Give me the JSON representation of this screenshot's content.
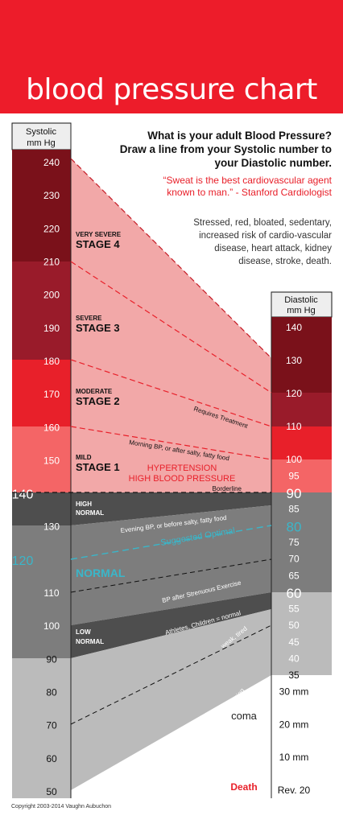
{
  "title": "blood pressure chart",
  "intro": {
    "question_line1": "What is your adult Blood Pressure?",
    "question_line2": "Draw a line from your Systolic number to",
    "question_line3": "your Diastolic number.",
    "quote_line1": "“Sweat is the best cardiovascular agent",
    "quote_line2": "known to man.” - Stanford Cardiologist",
    "risk_line1": "Stressed, red, bloated, sedentary,",
    "risk_line2": "increased risk of cardio-vascular",
    "risk_line3": "disease, heart attack, kidney",
    "risk_line4": "disease, stroke, death."
  },
  "systolic": {
    "header_line1": "Systolic",
    "header_line2": "mm Hg",
    "ticks": [
      {
        "label": "240",
        "value": 240
      },
      {
        "label": "230",
        "value": 230
      },
      {
        "label": "220",
        "value": 220
      },
      {
        "label": "210",
        "value": 210
      },
      {
        "label": "200",
        "value": 200
      },
      {
        "label": "190",
        "value": 190
      },
      {
        "label": "180",
        "value": 180
      },
      {
        "label": "170",
        "value": 170
      },
      {
        "label": "160",
        "value": 160
      },
      {
        "label": "150",
        "value": 150
      },
      {
        "label": "140",
        "value": 140,
        "big": true
      },
      {
        "label": "130",
        "value": 130
      },
      {
        "label": "120",
        "value": 120,
        "big": true,
        "color": "#3ab6c9"
      },
      {
        "label": "110",
        "value": 110
      },
      {
        "label": "100",
        "value": 100
      },
      {
        "label": "90",
        "value": 90
      },
      {
        "label": "80",
        "value": 80
      },
      {
        "label": "70",
        "value": 70
      },
      {
        "label": "60",
        "value": 60
      },
      {
        "label": "50",
        "value": 50
      }
    ]
  },
  "diastolic": {
    "header_line1": "Diastolic",
    "header_line2": "mm Hg",
    "ticks": [
      {
        "label": "140",
        "value": 140
      },
      {
        "label": "130",
        "value": 130
      },
      {
        "label": "120",
        "value": 120
      },
      {
        "label": "110",
        "value": 110
      },
      {
        "label": "100",
        "value": 100
      },
      {
        "label": "95",
        "value": 95
      },
      {
        "label": "90",
        "value": 90,
        "big": true
      },
      {
        "label": "85",
        "value": 85
      },
      {
        "label": "80",
        "value": 80,
        "big": true,
        "color": "#3ab6c9"
      },
      {
        "label": "75",
        "value": 75
      },
      {
        "label": "70",
        "value": 70
      },
      {
        "label": "65",
        "value": 65
      },
      {
        "label": "60",
        "value": 60,
        "big": true
      },
      {
        "label": "55",
        "value": 55
      },
      {
        "label": "50",
        "value": 50
      },
      {
        "label": "45",
        "value": 45
      },
      {
        "label": "40",
        "value": 40
      },
      {
        "label": "35",
        "value": 35
      },
      {
        "label": "30 mm",
        "value": 30
      },
      {
        "label": "20 mm",
        "value": 20
      },
      {
        "label": "10 mm",
        "value": 10
      },
      {
        "label": "Rev. 20",
        "value": 0
      }
    ]
  },
  "stages": [
    {
      "line1": "VERY SEVERE",
      "line2": "STAGE 4"
    },
    {
      "line1": "SEVERE",
      "line2": "STAGE 3"
    },
    {
      "line1": "MODERATE",
      "line2": "STAGE 2"
    },
    {
      "line1": "MILD",
      "line2": "STAGE 1"
    },
    {
      "line1": "HIGH",
      "line2": "NORMAL"
    },
    {
      "line1": "LOW",
      "line2": "NORMAL"
    }
  ],
  "hypertension_line1": "HYPERTENSION",
  "hypertension_line2": "HIGH BLOOD PRESSURE",
  "normal_label": "NORMAL",
  "line_labels": {
    "requires_treatment": "Requires Treatment",
    "morning_bp": "Morning BP, or after salty, fatty food",
    "borderline": "Borderline",
    "evening_bp": "Evening BP, or before salty, fatty food",
    "suggested_optimal": "Suggested Optimal",
    "strenuous": "BP after Strenuous Exercise",
    "athletes": "Athletes, Children = normal",
    "weak": "weak, tired",
    "dizzy": "dizzy, fainting"
  },
  "coma_label": "coma",
  "death_label": "Death",
  "copyright": "Copyright 2003-2014 Vaughn Aubuchon",
  "colors": {
    "brand_red": "#ed1c2a",
    "stage4": "#7a111a",
    "stage3": "#991b2a",
    "stage2": "#e8202a",
    "stage1": "#f46566",
    "high_normal": "#4e4e4e",
    "normal": "#7d7d7d",
    "low": "#bbbbbb",
    "band_fill": "#f2a8a8",
    "optimal": "#3ab6c9"
  }
}
